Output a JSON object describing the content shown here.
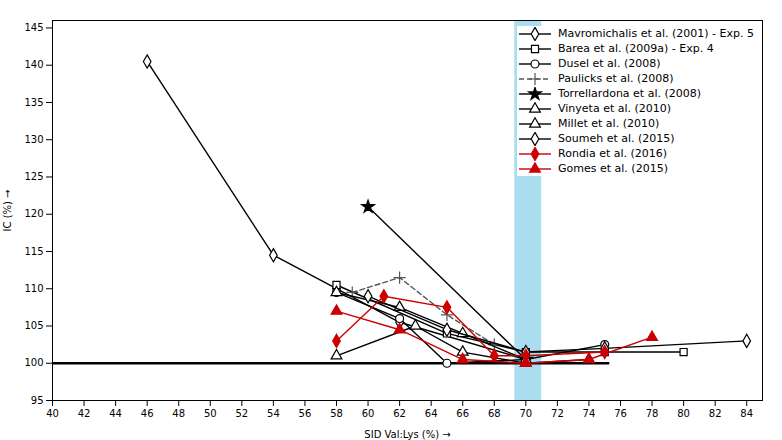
{
  "chart_data": {
    "type": "line",
    "xlabel": "SID Val:Lys (%)",
    "ylabel": "IC (%)",
    "xlim": [
      40,
      85
    ],
    "ylim": [
      95,
      146
    ],
    "xticks": [
      40,
      42,
      44,
      46,
      48,
      50,
      52,
      54,
      56,
      58,
      60,
      62,
      64,
      66,
      68,
      70,
      72,
      74,
      76,
      78,
      80,
      82,
      84
    ],
    "yticks": [
      95,
      100,
      105,
      110,
      115,
      120,
      125,
      130,
      135,
      140,
      145
    ],
    "grid": false,
    "legend": "top-right",
    "band": {
      "x": [
        69.3,
        71.0
      ],
      "color": "#87ceeb"
    },
    "reference_line": {
      "y": 100,
      "x": [
        40,
        75.325
      ],
      "color": "#000000"
    },
    "series": [
      {
        "name": "Mavromichalis et al. (2001) - Exp. 5",
        "color": "#000000",
        "marker": "open diamond",
        "line_style": "solid",
        "x": [
          46,
          54,
          58,
          62,
          70
        ],
        "values": [
          140.5,
          114.5,
          110.0,
          105.5,
          100.5
        ]
      },
      {
        "name": "Barea et al. (2009a) - Exp. 4",
        "color": "#000000",
        "marker": "open square",
        "line_style": "solid",
        "x": [
          58,
          65,
          70,
          75,
          80
        ],
        "values": [
          110.5,
          104.0,
          101.5,
          101.5,
          101.5
        ]
      },
      {
        "name": "Dusel et al. (2008)",
        "color": "#000000",
        "marker": "open circle",
        "line_style": "solid",
        "x": [
          58,
          62,
          65,
          70,
          75
        ],
        "values": [
          109.5,
          106.0,
          100.0,
          100.5,
          102.5
        ]
      },
      {
        "name": "Paulicks et al. (2008)",
        "color": "#555555",
        "marker": "plus",
        "line_style": "dashed",
        "x": [
          59,
          62,
          65,
          68
        ],
        "values": [
          109.5,
          111.5,
          106.5,
          102.5
        ]
      },
      {
        "name": "Torrellardona et al. (2008)",
        "color": "#000000",
        "marker": "star",
        "line_style": "solid",
        "x": [
          60,
          70
        ],
        "values": [
          121.0,
          100.5
        ]
      },
      {
        "name": "Vinyeta et al. (2010)",
        "color": "#000000",
        "marker": "open triangle",
        "line_style": "solid",
        "x": [
          58,
          62,
          66,
          70
        ],
        "values": [
          109.5,
          107.5,
          104.0,
          100.5
        ]
      },
      {
        "name": "Millet et al. (2010)",
        "color": "#000000",
        "marker": "open triangle",
        "line_style": "solid",
        "x": [
          58,
          63,
          66,
          70,
          74
        ],
        "values": [
          101.0,
          105.0,
          101.5,
          100.0,
          100.5
        ]
      },
      {
        "name": "Soumeh et al. (2015)",
        "color": "#000000",
        "marker": "open diamond",
        "line_style": "solid",
        "x": [
          60,
          65,
          70,
          75,
          84
        ],
        "values": [
          109.0,
          104.5,
          101.5,
          102.0,
          103.0
        ]
      },
      {
        "name": "Rondia et al. (2016)",
        "color": "#cc0000",
        "marker": "diamond",
        "line_style": "solid",
        "x": [
          58,
          61,
          65,
          68,
          70,
          75
        ],
        "values": [
          103.0,
          109.0,
          107.5,
          101.0,
          101.0,
          101.5
        ]
      },
      {
        "name": "Gomes et al. (2015)",
        "color": "#cc0000",
        "marker": "triangle",
        "line_style": "solid",
        "x": [
          58,
          62,
          66,
          70,
          74,
          78
        ],
        "values": [
          107.0,
          104.5,
          100.5,
          100.0,
          100.5,
          103.5
        ]
      }
    ]
  }
}
